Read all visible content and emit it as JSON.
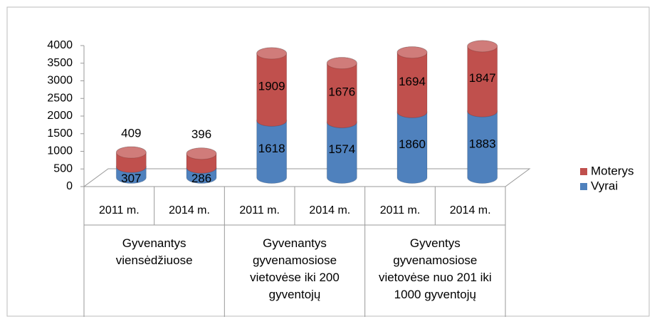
{
  "chart_data": {
    "type": "bar3d-stacked",
    "categories": [
      "2011 m.",
      "2014 m.",
      "2011 m.",
      "2014 m.",
      "2011 m.",
      "2014 m."
    ],
    "groups": [
      "Gyvenantys viensėdžiuose",
      "Gyvenantys gyvenamosiose vietovėse iki 200 gyventojų",
      "Gyventys gyvenamosiose vietovėse nuo 201 iki 1000 gyventojų"
    ],
    "series": [
      {
        "name": "Vyrai",
        "color": "#4f81bd",
        "values": [
          307,
          286,
          1618,
          1574,
          1860,
          1883
        ]
      },
      {
        "name": "Moterys",
        "color": "#c0504d",
        "values": [
          409,
          396,
          1909,
          1676,
          1694,
          1847
        ]
      }
    ],
    "ylim": [
      0,
      4000
    ],
    "yticks": [
      0,
      500,
      1000,
      1500,
      2000,
      2500,
      3000,
      3500,
      4000
    ],
    "legend": "right"
  }
}
